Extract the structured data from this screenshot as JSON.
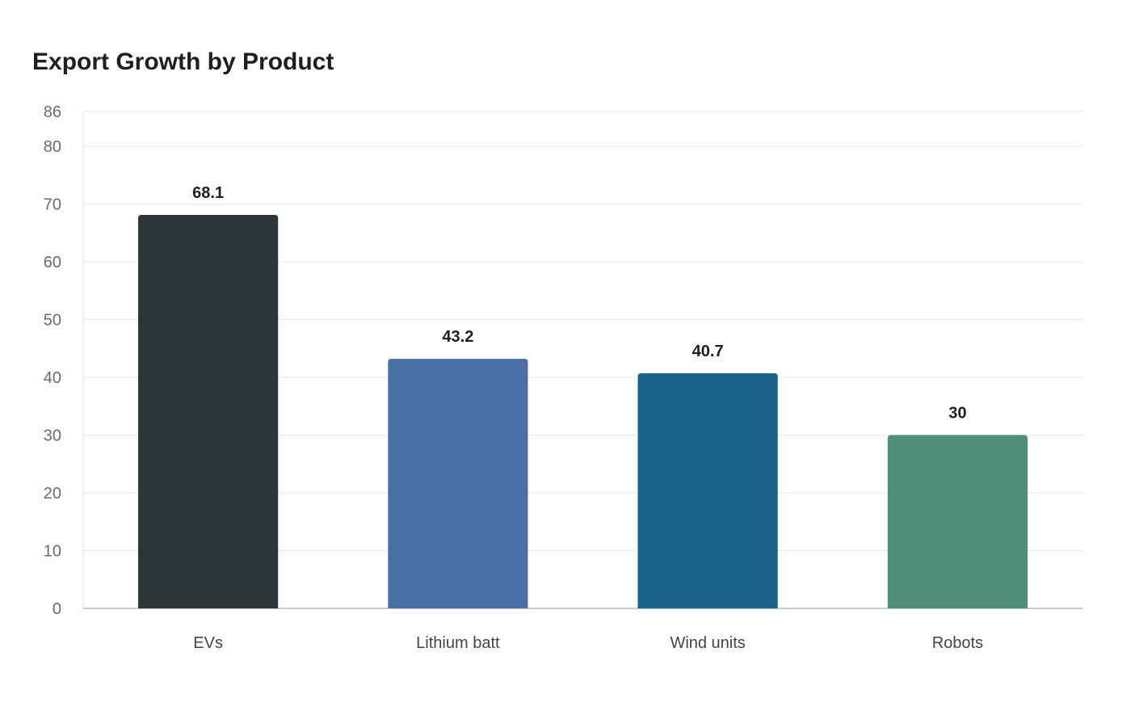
{
  "chart_data": {
    "type": "bar",
    "title": "Export Growth by Product",
    "categories": [
      "EVs",
      "Lithium batt",
      "Wind units",
      "Robots"
    ],
    "values": [
      68.1,
      43.2,
      40.7,
      30
    ],
    "value_labels": [
      "68.1",
      "43.2",
      "40.7",
      "30"
    ],
    "colors": [
      "#2d3538",
      "#4a6fa5",
      "#186189",
      "#4e8e7a"
    ],
    "ylim": [
      0,
      86
    ],
    "yticks": [
      0,
      10,
      20,
      30,
      40,
      50,
      60,
      70,
      80,
      86
    ],
    "xlabel": "",
    "ylabel": "",
    "grid": true,
    "legend": "none"
  }
}
